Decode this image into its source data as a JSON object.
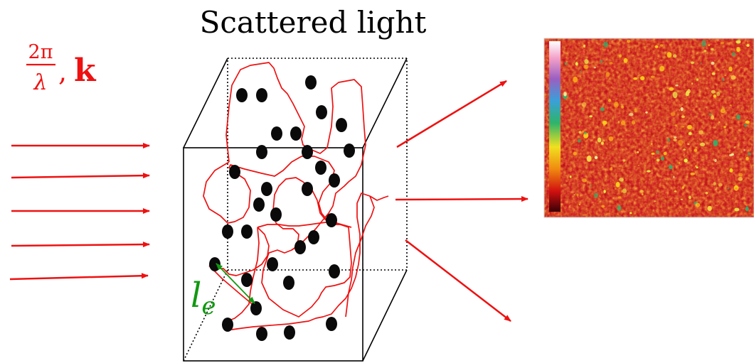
{
  "title": "Scattered light",
  "wave_label": {
    "numerator": "2π",
    "denominator": "λ",
    "separator": ",",
    "vector": "k"
  },
  "mean_free_path_label": {
    "symbol": "l",
    "subscript": "e"
  },
  "colors": {
    "light": "#ee1111",
    "scatterer": "#0a0a0a",
    "mean_free_path": "#119911",
    "box": "#000000"
  },
  "incident_beam_count": 5,
  "scatterer_count": 34,
  "speckle_colormap": [
    "#ffffff",
    "#f3a0c8",
    "#9b5fc0",
    "#3aa0d8",
    "#2fb36a",
    "#f0e020",
    "#f08a10",
    "#d01010",
    "#3a0006"
  ]
}
